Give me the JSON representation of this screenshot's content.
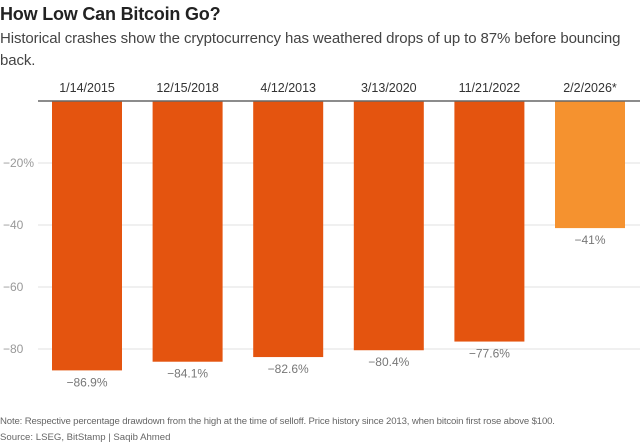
{
  "title": "How Low Can Bitcoin Go?",
  "subtitle": "Historical crashes show the cryptocurrency has weathered drops of up to 87% before bouncing back.",
  "note": "Note: Respective percentage drawdown from the high at the time of selloff. Price history since 2013, when bitcoin first rose above $100.",
  "source": "Source: LSEG, BitStamp | Saqib Ahmed",
  "chart_data": {
    "type": "bar",
    "categories": [
      "1/14/2015",
      "12/15/2018",
      "4/12/2013",
      "3/13/2020",
      "11/21/2022",
      "2/2/2026*"
    ],
    "values": [
      -86.9,
      -84.1,
      -82.6,
      -80.4,
      -77.6,
      -41
    ],
    "data_labels": [
      "−86.9%",
      "−84.1%",
      "−82.6%",
      "−80.4%",
      "−77.6%",
      "−41%"
    ],
    "colors": [
      "#e4540f",
      "#e4540f",
      "#e4540f",
      "#e4540f",
      "#e4540f",
      "#f5922f"
    ],
    "yticks": [
      -20,
      -40,
      -60,
      -80
    ],
    "ytick_labels": [
      "−20%",
      "−40",
      "−60",
      "−80"
    ],
    "ylim": [
      -90,
      0
    ],
    "grid": true,
    "xlabel": "",
    "ylabel": ""
  }
}
